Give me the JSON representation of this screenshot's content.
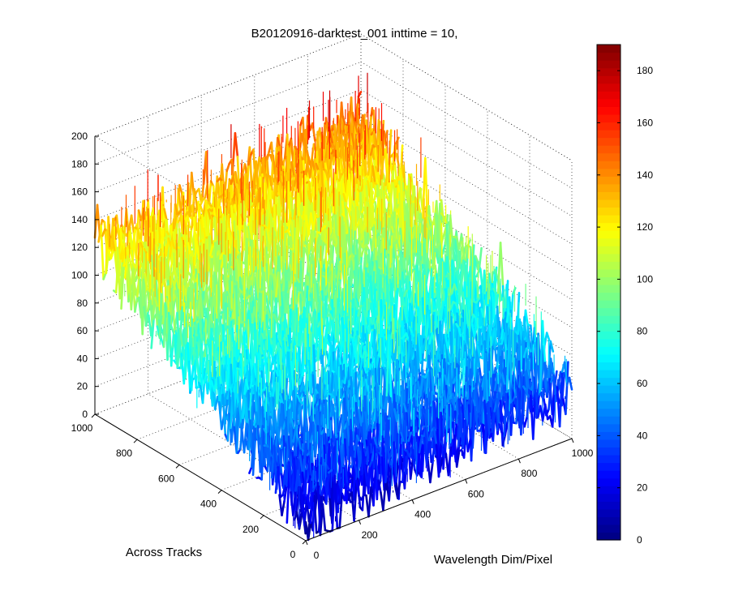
{
  "chart_data": {
    "type": "surface",
    "title": "B20120916-darktest_001 inttime = 10,",
    "xlabel": "Wavelength Dim/Pixel",
    "ylabel": "Across Tracks",
    "zlabel": "",
    "xlim": [
      0,
      1000
    ],
    "ylim": [
      0,
      1000
    ],
    "zlim": [
      0,
      200
    ],
    "xticks": [
      "0",
      "200",
      "400",
      "600",
      "800",
      "1000"
    ],
    "yticks": [
      "0",
      "200",
      "400",
      "600",
      "800",
      "1000"
    ],
    "zticks": [
      "0",
      "20",
      "40",
      "60",
      "80",
      "100",
      "120",
      "140",
      "160",
      "180",
      "200"
    ],
    "grid": true,
    "colormap": "jet",
    "colorbar": {
      "range": [
        0,
        190
      ],
      "ticks": [
        "0",
        "20",
        "40",
        "60",
        "80",
        "100",
        "120",
        "140",
        "160",
        "180"
      ]
    },
    "surface_model": {
      "description_z_at_x0_y0": 15,
      "z_at_x1000_y0": 35,
      "z_at_x0_y1000": 120,
      "z_at_x1000_y1000": 138,
      "max_value": 190
    }
  }
}
